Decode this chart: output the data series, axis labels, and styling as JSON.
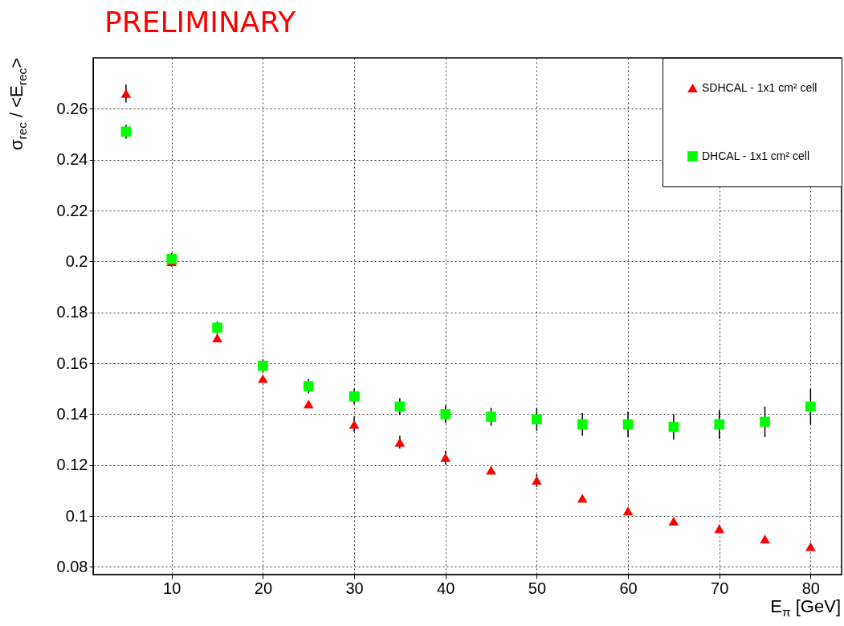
{
  "chart_data": {
    "type": "scatter",
    "title": "PRELIMINARY",
    "xlabel": "E$_{π}$ [GeV]",
    "ylabel": "σ$_{rec}$ / <E$_{rec}$>",
    "x": [
      5,
      10,
      15,
      20,
      25,
      30,
      35,
      40,
      45,
      50,
      55,
      60,
      65,
      70,
      75,
      80
    ],
    "series": [
      {
        "name": "SDHCAL - 1x1 cm² cell",
        "color": "#ff0000",
        "marker": "triangle",
        "values": [
          0.266,
          0.2,
          0.17,
          0.154,
          0.144,
          0.136,
          0.129,
          0.123,
          0.118,
          0.114,
          0.107,
          0.102,
          0.098,
          0.095,
          0.091,
          0.088
        ],
        "errors": [
          0.0035,
          0.002,
          0.0015,
          null,
          null,
          0.003,
          0.0025,
          0.0027,
          0.0015,
          0.0025,
          null,
          null,
          null,
          null,
          null,
          0.001
        ]
      },
      {
        "name": "DHCAL - 1x1 cm² cell",
        "color": "#00ff00",
        "marker": "square",
        "values": [
          0.251,
          0.201,
          0.174,
          0.159,
          0.151,
          0.147,
          0.143,
          0.14,
          0.139,
          0.138,
          0.136,
          0.136,
          0.135,
          0.136,
          0.137,
          0.143
        ],
        "errors": [
          0.0027,
          0.0024,
          0.0024,
          0.0025,
          0.0027,
          0.003,
          0.0033,
          0.0035,
          0.0035,
          0.0045,
          0.0045,
          0.005,
          0.005,
          0.0057,
          0.006,
          0.007
        ]
      }
    ],
    "xlim": [
      1.4,
      83.4
    ],
    "xticks": [
      10,
      20,
      30,
      40,
      50,
      60,
      70,
      80
    ],
    "ylim": [
      0.077,
      0.28
    ],
    "yticks": [
      0.08,
      0.1,
      0.12,
      0.14,
      0.16,
      0.18,
      0.2,
      0.22,
      0.24,
      0.26
    ],
    "grid": true,
    "legend": "top right"
  }
}
